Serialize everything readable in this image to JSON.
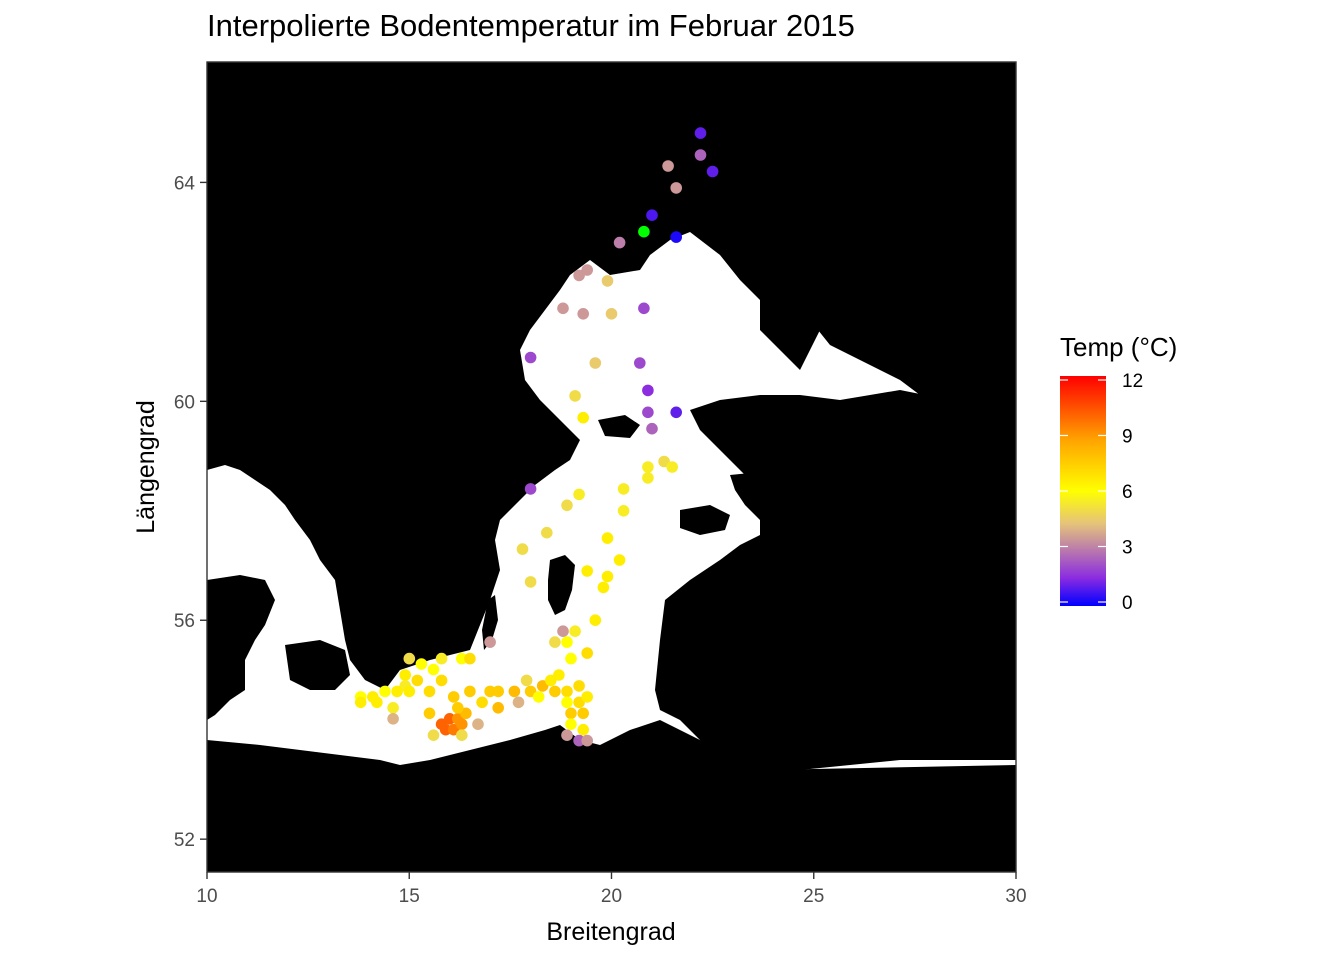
{
  "title": "Interpolierte Bodentemperatur im Februar 2015",
  "colors": {
    "land": "#000000",
    "sea": "#ffffff",
    "scale_stops": [
      "#0000ff",
      "#8a2be2",
      "#e6c47a",
      "#ffff00",
      "#ffa500",
      "#ff0000"
    ]
  },
  "chart_data": {
    "type": "scatter",
    "title": "Interpolierte Bodentemperatur im Februar 2015",
    "xlabel": "Breitengrad",
    "ylabel": "Längengrad",
    "xlim": [
      10,
      30
    ],
    "ylim": [
      51.4,
      66.2
    ],
    "xticks": [
      10,
      15,
      20,
      25,
      30
    ],
    "yticks": [
      52,
      56,
      60,
      64
    ],
    "grid": false,
    "legend": {
      "title": "Temp (°C)",
      "placement": "right",
      "range": [
        0,
        12
      ],
      "ticks": [
        0,
        3,
        6,
        9,
        12
      ]
    },
    "points": [
      [
        22.2,
        64.9,
        1.0
      ],
      [
        22.2,
        64.5,
        2.5
      ],
      [
        21.4,
        64.3,
        3.5
      ],
      [
        22.5,
        64.2,
        1.0
      ],
      [
        21.6,
        63.9,
        3.5
      ],
      [
        21.0,
        63.4,
        0.8
      ],
      [
        20.8,
        63.1,
        14.0
      ],
      [
        21.6,
        63.0,
        0.3
      ],
      [
        20.2,
        62.9,
        3.0
      ],
      [
        19.4,
        62.4,
        3.5
      ],
      [
        19.2,
        62.3,
        3.5
      ],
      [
        19.9,
        62.2,
        4.5
      ],
      [
        18.8,
        61.7,
        3.5
      ],
      [
        19.3,
        61.6,
        3.5
      ],
      [
        20.0,
        61.6,
        4.5
      ],
      [
        20.8,
        61.7,
        2.0
      ],
      [
        18.0,
        60.8,
        2.0
      ],
      [
        19.6,
        60.7,
        4.5
      ],
      [
        20.7,
        60.7,
        2.0
      ],
      [
        19.1,
        60.1,
        5.0
      ],
      [
        20.9,
        60.2,
        1.5
      ],
      [
        19.3,
        59.7,
        6.5
      ],
      [
        20.9,
        59.8,
        2.0
      ],
      [
        21.6,
        59.8,
        1.0
      ],
      [
        21.0,
        59.5,
        2.5
      ],
      [
        20.9,
        58.8,
        5.5
      ],
      [
        21.3,
        58.9,
        5.0
      ],
      [
        21.5,
        58.8,
        5.5
      ],
      [
        20.9,
        58.6,
        5.5
      ],
      [
        18.0,
        58.4,
        2.0
      ],
      [
        20.3,
        58.4,
        5.5
      ],
      [
        19.2,
        58.3,
        5.5
      ],
      [
        18.9,
        58.1,
        5.0
      ],
      [
        20.3,
        58.0,
        5.5
      ],
      [
        18.4,
        57.6,
        5.0
      ],
      [
        19.9,
        57.5,
        6.5
      ],
      [
        17.8,
        57.3,
        5.0
      ],
      [
        20.2,
        57.1,
        6.5
      ],
      [
        19.4,
        56.9,
        6.5
      ],
      [
        19.9,
        56.8,
        6.5
      ],
      [
        18.0,
        56.7,
        5.0
      ],
      [
        19.8,
        56.6,
        6.5
      ],
      [
        19.6,
        56.0,
        6.5
      ],
      [
        17.0,
        55.6,
        3.5
      ],
      [
        18.8,
        55.8,
        3.5
      ],
      [
        19.1,
        55.8,
        5.5
      ],
      [
        18.9,
        55.6,
        6.0
      ],
      [
        18.6,
        55.6,
        5.0
      ],
      [
        19.4,
        55.4,
        7.0
      ],
      [
        19.0,
        55.3,
        6.0
      ],
      [
        15.0,
        55.3,
        5.0
      ],
      [
        15.3,
        55.2,
        6.0
      ],
      [
        15.6,
        55.1,
        6.0
      ],
      [
        15.8,
        55.3,
        5.5
      ],
      [
        16.3,
        55.3,
        6.0
      ],
      [
        16.5,
        55.3,
        7.0
      ],
      [
        14.9,
        55.0,
        6.5
      ],
      [
        15.2,
        54.9,
        7.0
      ],
      [
        15.8,
        54.9,
        7.0
      ],
      [
        14.9,
        54.8,
        5.5
      ],
      [
        13.8,
        54.6,
        6.0
      ],
      [
        14.1,
        54.6,
        6.5
      ],
      [
        14.4,
        54.7,
        6.0
      ],
      [
        14.7,
        54.7,
        6.5
      ],
      [
        15.0,
        54.7,
        6.5
      ],
      [
        13.8,
        54.5,
        6.5
      ],
      [
        14.2,
        54.5,
        6.5
      ],
      [
        14.6,
        54.4,
        5.5
      ],
      [
        15.5,
        54.7,
        7.0
      ],
      [
        16.1,
        54.6,
        7.5
      ],
      [
        16.5,
        54.7,
        7.5
      ],
      [
        17.0,
        54.7,
        7.5
      ],
      [
        17.2,
        54.7,
        7.5
      ],
      [
        17.6,
        54.7,
        8.0
      ],
      [
        18.0,
        54.7,
        7.5
      ],
      [
        18.3,
        54.8,
        8.0
      ],
      [
        18.6,
        54.7,
        7.5
      ],
      [
        18.9,
        54.7,
        7.0
      ],
      [
        19.2,
        54.8,
        7.0
      ],
      [
        17.9,
        54.9,
        5.0
      ],
      [
        18.5,
        54.9,
        6.5
      ],
      [
        18.7,
        55.0,
        6.5
      ],
      [
        18.2,
        54.6,
        6.0
      ],
      [
        17.7,
        54.5,
        4.0
      ],
      [
        18.9,
        54.5,
        6.0
      ],
      [
        19.2,
        54.5,
        7.0
      ],
      [
        19.4,
        54.6,
        6.5
      ],
      [
        19.0,
        54.3,
        7.5
      ],
      [
        19.3,
        54.3,
        7.5
      ],
      [
        19.0,
        54.1,
        6.0
      ],
      [
        19.3,
        54.0,
        6.5
      ],
      [
        18.9,
        53.9,
        3.5
      ],
      [
        19.2,
        53.8,
        2.5
      ],
      [
        19.4,
        53.8,
        3.5
      ],
      [
        15.5,
        54.3,
        7.5
      ],
      [
        15.8,
        54.1,
        10.0
      ],
      [
        16.0,
        54.2,
        10.0
      ],
      [
        16.2,
        54.2,
        9.0
      ],
      [
        16.4,
        54.3,
        8.0
      ],
      [
        15.9,
        54.0,
        10.0
      ],
      [
        16.1,
        54.0,
        9.5
      ],
      [
        16.3,
        54.1,
        9.0
      ],
      [
        15.6,
        53.9,
        5.0
      ],
      [
        16.3,
        53.9,
        5.0
      ],
      [
        16.7,
        54.1,
        4.0
      ],
      [
        14.6,
        54.2,
        4.0
      ],
      [
        16.2,
        54.4,
        7.5
      ],
      [
        16.8,
        54.5,
        7.0
      ],
      [
        17.2,
        54.4,
        8.0
      ]
    ]
  }
}
